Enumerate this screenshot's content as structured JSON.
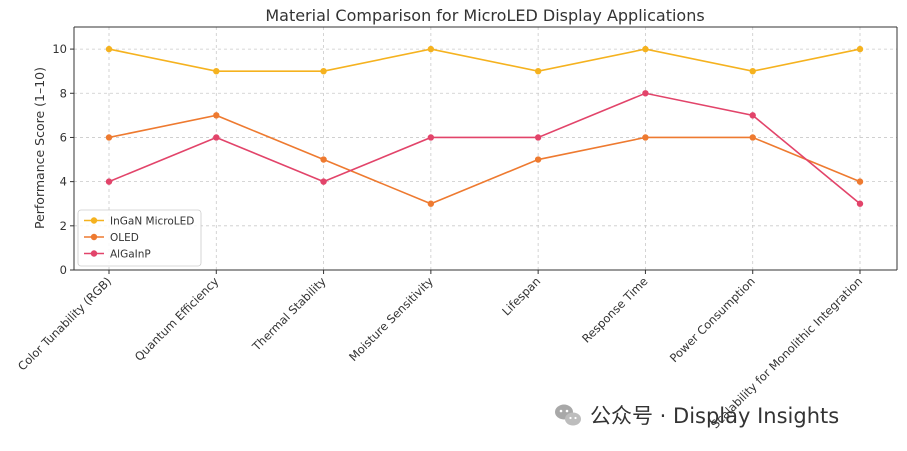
{
  "chart_data": {
    "type": "line",
    "title": "Material Comparison for MicroLED Display Applications",
    "xlabel": "",
    "ylabel": "Performance Score (1–10)",
    "ylim": [
      0,
      11
    ],
    "yticks": [
      0,
      2,
      4,
      6,
      8,
      10
    ],
    "grid": true,
    "legend_position": "center-left",
    "categories": [
      "Color Tunability (RGB)",
      "Quantum Efficiency",
      "Thermal Stability",
      "Moisture Sensitivity",
      "Lifespan",
      "Response Time",
      "Power Consumption",
      "Scalability for Monolithic Integration"
    ],
    "series": [
      {
        "name": "InGaN MicroLED",
        "color": "#f5b21f",
        "values": [
          10,
          9,
          9,
          10,
          9,
          10,
          9,
          10
        ]
      },
      {
        "name": "OLED",
        "color": "#ee7a30",
        "values": [
          6,
          7,
          5,
          3,
          5,
          6,
          6,
          4
        ]
      },
      {
        "name": "AlGaInP",
        "color": "#e2446a",
        "values": [
          4,
          6,
          4,
          6,
          6,
          8,
          7,
          3
        ]
      }
    ]
  },
  "watermark": {
    "text": "公众号 · Display Insights",
    "icon": "wechat-icon"
  }
}
